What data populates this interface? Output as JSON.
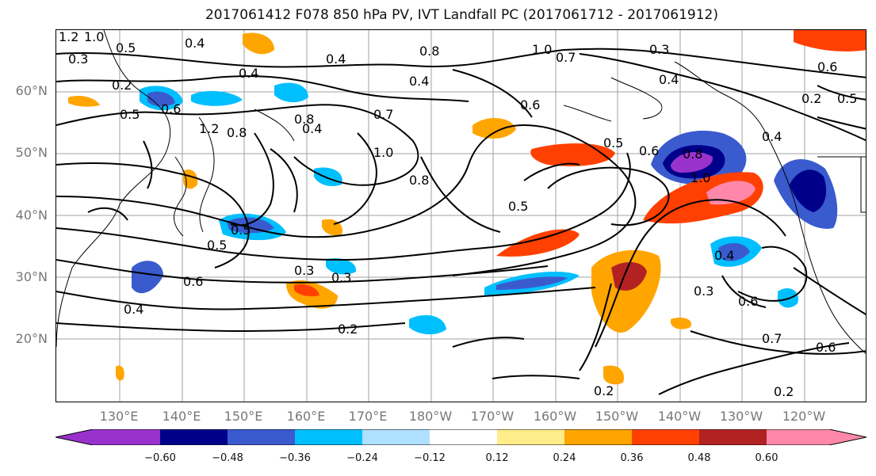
{
  "title": "2017061412 F078 850 hPa PV, IVT Landfall PC (2017061712 - 2017061912)",
  "map": {
    "lat_labels": [
      "60°N",
      "50°N",
      "40°N",
      "30°N",
      "20°N"
    ],
    "lon_labels": [
      "130°E",
      "140°E",
      "150°E",
      "160°E",
      "170°E",
      "180°W",
      "170°W",
      "160°W",
      "150°W",
      "140°W",
      "130°W",
      "120°W"
    ],
    "contour_labels": [
      "1.2",
      "1.0",
      "0.5",
      "0.3",
      "0.4",
      "0.4",
      "0.4",
      "0.4",
      "0.8",
      "1.0",
      "0.7",
      "0.3",
      "0.2",
      "0.5",
      "0.6",
      "0.8",
      "1.2",
      "0.8",
      "0.4",
      "0.7",
      "1.0",
      "0.8",
      "0.5",
      "0.6",
      "0.5",
      "0.8",
      "1.0",
      "0.4",
      "0.6",
      "0.2",
      "0.5",
      "0.6",
      "0.5",
      "0.5",
      "0.3",
      "0.3",
      "0.2",
      "0.4",
      "0.3",
      "0.6",
      "0.7",
      "0.6",
      "0.2",
      "0.2",
      "0.4",
      "0.6",
      "0.4"
    ],
    "grid_color": "#a0a0a0",
    "coast_color": "#000000"
  },
  "colorbar": {
    "ticks": [
      "−0.60",
      "−0.48",
      "−0.36",
      "−0.24",
      "−0.12",
      "0.12",
      "0.24",
      "0.36",
      "0.48",
      "0.60"
    ],
    "colors": [
      "#9932CC",
      "#00008B",
      "#3A5BCE",
      "#00BFFF",
      "#B0E0FF",
      "#FFFFFF",
      "#FFEC8B",
      "#FFA500",
      "#FF4000",
      "#B22222",
      "#FF88AA"
    ]
  }
}
